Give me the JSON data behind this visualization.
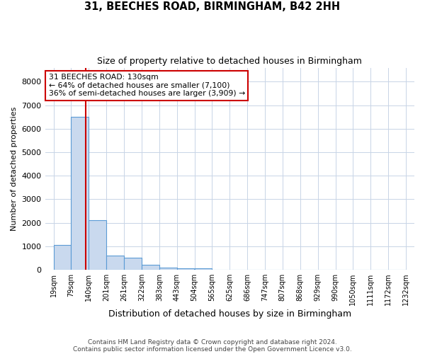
{
  "title1": "31, BEECHES ROAD, BIRMINGHAM, B42 2HH",
  "title2": "Size of property relative to detached houses in Birmingham",
  "xlabel": "Distribution of detached houses by size in Birmingham",
  "ylabel": "Number of detached properties",
  "bin_edges": [
    19,
    79,
    140,
    201,
    261,
    322,
    383,
    443,
    504,
    565,
    625,
    686,
    747,
    807,
    868,
    929,
    990,
    1050,
    1111,
    1172,
    1232
  ],
  "bin_counts": [
    1050,
    6500,
    2100,
    600,
    500,
    200,
    100,
    70,
    55,
    10,
    5,
    2,
    2,
    1,
    1,
    0,
    0,
    0,
    0,
    0
  ],
  "bar_color": "#c9d9ee",
  "bar_edge_color": "#5b9bd5",
  "property_size": 130,
  "red_line_color": "#cc0000",
  "annotation_line1": "31 BEECHES ROAD: 130sqm",
  "annotation_line2": "← 64% of detached houses are smaller (7,100)",
  "annotation_line3": "36% of semi-detached houses are larger (3,909) →",
  "annotation_box_color": "#ffffff",
  "annotation_box_edge": "#cc0000",
  "ylim": [
    0,
    8600
  ],
  "yticks": [
    0,
    1000,
    2000,
    3000,
    4000,
    5000,
    6000,
    7000,
    8000
  ],
  "footer1": "Contains HM Land Registry data © Crown copyright and database right 2024.",
  "footer2": "Contains public sector information licensed under the Open Government Licence v3.0.",
  "background_color": "#ffffff",
  "grid_color": "#c8d4e6"
}
